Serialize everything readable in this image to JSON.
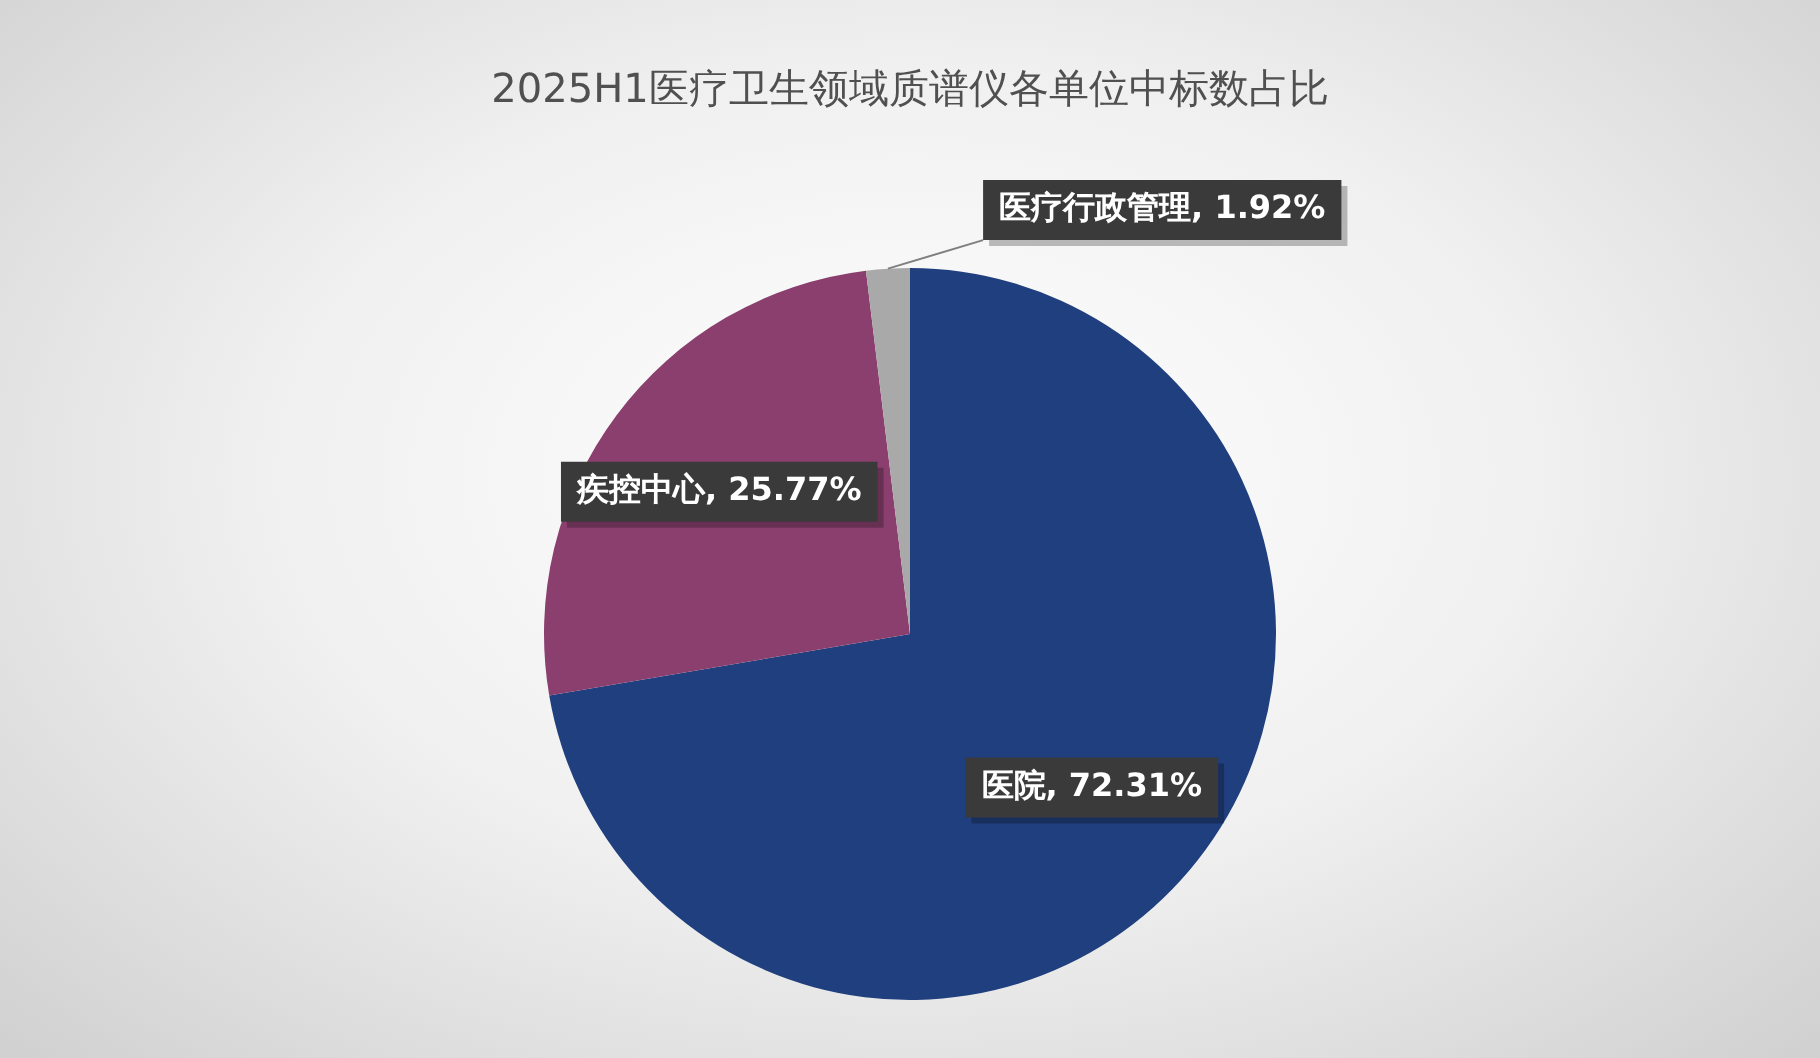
{
  "chart_data": {
    "type": "pie",
    "title": "2025H1医疗卫生领域质谱仪各单位中标数占比",
    "categories": [
      "医院",
      "疾控中心",
      "医疗行政管理"
    ],
    "values": [
      72.31,
      25.77,
      1.92
    ],
    "colors": [
      "#203f7e",
      "#8a3f6e",
      "#a9a9a9"
    ],
    "value_labels": [
      "72.31%",
      "25.77%",
      "1.92%"
    ],
    "legend": false
  }
}
